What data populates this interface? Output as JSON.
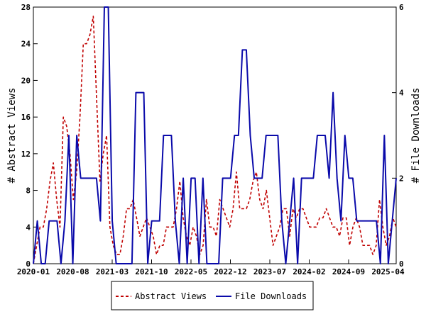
{
  "chart_data": {
    "type": "line",
    "x_ticks": [
      "2020-01",
      "2020-08",
      "2021-03",
      "2021-10",
      "2022-05",
      "2022-12",
      "2023-07",
      "2024-02",
      "2024-09",
      "2025-04"
    ],
    "y_left": {
      "label": "# Abstract Views",
      "range": [
        0,
        28
      ],
      "ticks": [
        0,
        4,
        8,
        12,
        16,
        20,
        24,
        28
      ]
    },
    "y_right": {
      "label": "# File Downloads",
      "range": [
        0,
        6
      ],
      "ticks": [
        0,
        2,
        4,
        6
      ]
    },
    "legend_position": "bottom-center",
    "grid": false,
    "series": [
      {
        "name": "Abstract Views",
        "axis": "left",
        "color": "#c00000",
        "dash": true,
        "values": [
          0,
          2,
          4,
          4,
          6,
          9,
          11,
          7,
          4,
          16,
          15,
          12,
          7,
          10,
          16,
          24,
          24,
          25,
          27,
          18,
          9,
          12,
          14,
          4,
          2,
          1,
          1,
          3,
          6,
          6,
          7,
          5,
          3,
          4,
          5,
          4,
          3,
          1,
          2,
          2,
          4,
          4,
          4,
          6,
          9,
          5,
          3,
          2,
          4,
          3,
          1,
          2,
          7,
          4,
          4,
          3,
          7,
          6,
          5,
          4,
          6,
          10,
          6,
          6,
          6,
          7,
          9,
          10,
          7,
          6,
          8,
          5,
          2,
          3,
          4,
          6,
          6,
          3,
          6,
          5,
          6,
          6,
          5,
          4,
          4,
          4,
          5,
          5,
          6,
          5,
          4,
          4,
          3,
          5,
          5,
          2,
          4,
          5,
          4,
          2,
          2,
          2,
          1,
          2,
          7,
          4,
          2,
          3,
          5,
          4
        ]
      },
      {
        "name": "File Downloads",
        "axis": "right",
        "color": "#0a0aaa",
        "dash": false,
        "values": [
          0,
          1,
          0,
          0,
          1,
          1,
          1,
          0,
          1,
          3,
          0,
          3,
          2,
          2,
          2,
          2,
          2,
          1,
          6,
          6,
          1,
          0,
          0,
          0,
          0,
          0,
          4,
          4,
          4,
          0,
          1,
          1,
          1,
          3,
          3,
          3,
          1,
          0,
          2,
          0,
          2,
          2,
          0,
          2,
          0,
          0,
          0,
          0,
          2,
          2,
          2,
          3,
          3,
          5,
          5,
          3,
          2,
          2,
          2,
          3,
          3,
          3,
          3,
          1,
          0,
          1,
          2,
          0,
          2,
          2,
          2,
          2,
          3,
          3,
          3,
          2,
          4,
          2,
          1,
          3,
          2,
          2,
          1,
          1,
          1,
          1,
          1,
          1,
          0,
          3,
          0,
          1,
          2
        ]
      }
    ]
  }
}
